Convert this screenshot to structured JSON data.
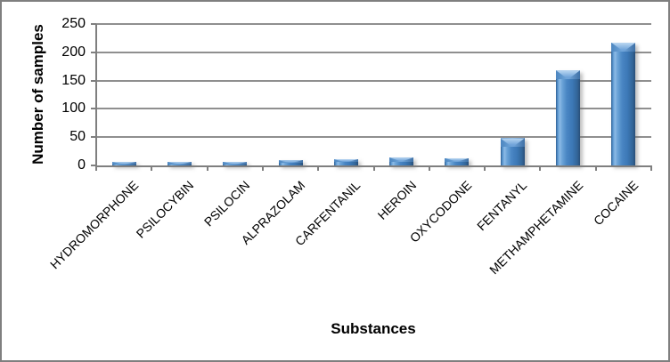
{
  "figure": {
    "background": "#ffffff",
    "border_color": "#7f7f7f"
  },
  "chart_data": {
    "type": "bar",
    "title": "",
    "xlabel": "Substances",
    "ylabel": "Number of samples",
    "categories": [
      "HYDROMORPHONE",
      "PSILOCYBIN",
      "PSILOCIN",
      "ALPRAZOLAM",
      "CARFENTANIL",
      "HEROIN",
      "OXYCODONE",
      "FENTANYL",
      "METHAMPHETAMINE",
      "COCAINE"
    ],
    "values": [
      6,
      6,
      6,
      9,
      11,
      14,
      13,
      48,
      168,
      217
    ],
    "ylim": [
      0,
      250
    ],
    "yticks": [
      0,
      50,
      100,
      150,
      200,
      250
    ],
    "grid": true,
    "legend_position": "none",
    "colors": {
      "bar": "#3c78b6",
      "bar_edge": "#294f79",
      "bar_highlight": "#bcd8f2",
      "gridline": "#8f8f8f",
      "axis": "#7f7f7f",
      "text": "#000000"
    }
  }
}
